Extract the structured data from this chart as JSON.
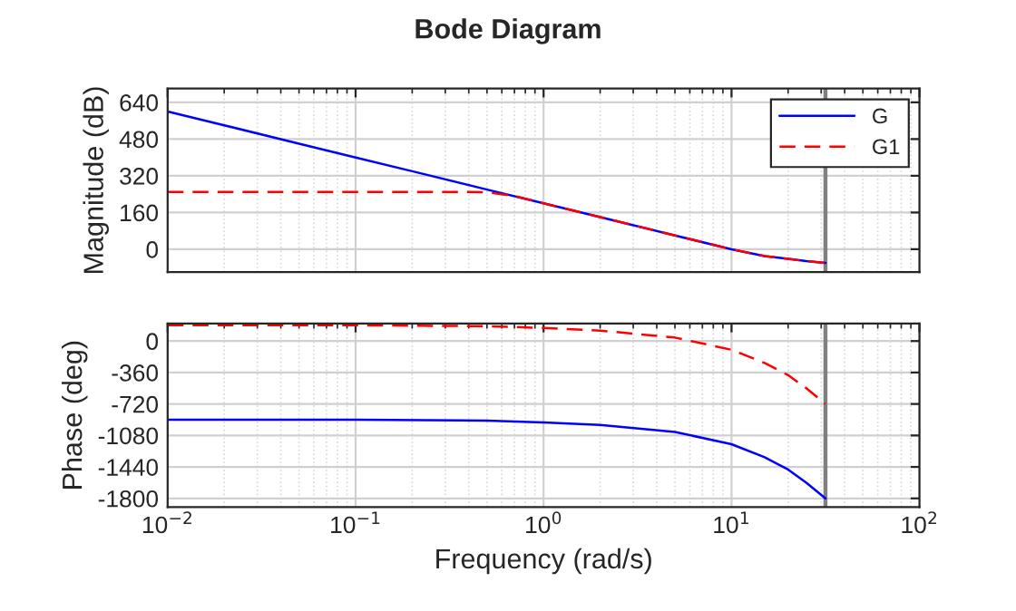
{
  "chart_data": [
    {
      "type": "line",
      "title": "Bode Diagram",
      "ylabel": "Magnitude (dB)",
      "log": "x",
      "grid": true,
      "legend": "top right",
      "tick_labels": "y",
      "xlim": [
        0.01,
        100
      ],
      "xticks": [
        {
          "value": 0.01,
          "label": null
        },
        {
          "value": 0.1,
          "label": null
        },
        {
          "value": 1,
          "label": null
        },
        {
          "value": 10,
          "label": null
        },
        {
          "value": 100,
          "label": null
        }
      ],
      "ylim": [
        -100,
        700
      ],
      "yticks": [
        0,
        160,
        320,
        480,
        640
      ],
      "ref_lines": [
        {
          "axis": "x",
          "value": 31.6,
          "color": "#808080"
        }
      ],
      "series": [
        {
          "name": "G",
          "color": "#0000ff",
          "line_style": "solid",
          "x": [
            0.01,
            0.02,
            0.05,
            0.1,
            0.2,
            0.5,
            1,
            2,
            5,
            10,
            15,
            20,
            25,
            31.6
          ],
          "values": [
            600,
            540,
            460,
            400,
            340,
            260,
            200,
            140,
            60,
            0,
            -30,
            -42,
            -52,
            -60
          ]
        },
        {
          "name": "G1",
          "color": "#ff0000",
          "line_style": "dashed",
          "x": [
            0.01,
            0.02,
            0.05,
            0.1,
            0.2,
            0.4,
            0.5,
            0.7,
            1,
            2,
            5,
            10,
            15,
            20,
            25,
            31.6
          ],
          "values": [
            250,
            250,
            250,
            250,
            250,
            250,
            248,
            232,
            200,
            140,
            60,
            0,
            -30,
            -42,
            -52,
            -60
          ]
        }
      ]
    },
    {
      "type": "line",
      "xlabel": "Frequency (rad/s)",
      "ylabel": "Phase (deg)",
      "log": "x",
      "grid": true,
      "xlim": [
        0.01,
        100
      ],
      "xticks": [
        {
          "value": 0.01,
          "label": "10$^{−2}$"
        },
        {
          "value": 0.1,
          "label": "10$^{−1}$"
        },
        {
          "value": 1,
          "label": "10$^{0}$"
        },
        {
          "value": 10,
          "label": "10$^{1}$"
        },
        {
          "value": 100,
          "label": "10$^{2}$"
        }
      ],
      "ylim": [
        -1900,
        200
      ],
      "yticks": [
        -1800,
        -1440,
        -1080,
        -720,
        -360,
        0
      ],
      "ref_lines": [
        {
          "axis": "x",
          "value": 31.6,
          "color": "#808080"
        }
      ],
      "series": [
        {
          "color": "#0000ff",
          "line_style": "solid",
          "x": [
            0.01,
            0.1,
            0.5,
            1,
            2,
            5,
            10,
            15,
            20,
            25,
            31.6
          ],
          "values": [
            -900,
            -900,
            -910,
            -930,
            -960,
            -1040,
            -1180,
            -1330,
            -1470,
            -1620,
            -1800
          ]
        },
        {
          "color": "#ff0000",
          "line_style": "dashed",
          "x": [
            0.01,
            0.1,
            0.5,
            1,
            2,
            5,
            10,
            15,
            20,
            25,
            31.6
          ],
          "values": [
            180,
            180,
            170,
            150,
            120,
            40,
            -100,
            -250,
            -390,
            -540,
            -720
          ]
        }
      ]
    }
  ]
}
